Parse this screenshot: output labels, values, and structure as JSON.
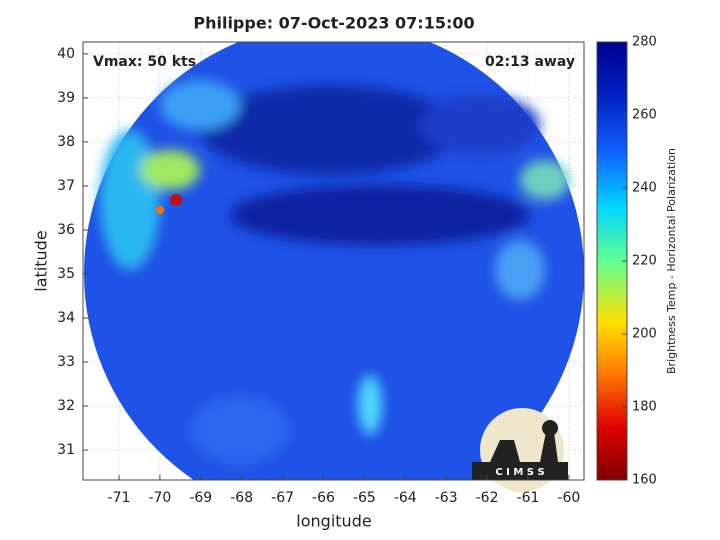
{
  "chart_data": {
    "type": "map",
    "title": "Philippe: 07-Oct-2023 07:15:00",
    "annotations": [
      "Vmax: 50 kts",
      "02:13 away"
    ],
    "xlabel": "longitude",
    "ylabel": "latitude",
    "xlim": [
      -71.88,
      -59.63
    ],
    "ylim": [
      30.32,
      40.27
    ],
    "xticks": [
      -71,
      -70,
      -69,
      -68,
      -67,
      -66,
      -65,
      -64,
      -63,
      -62,
      -61,
      -60
    ],
    "yticks": [
      31,
      32,
      33,
      34,
      35,
      36,
      37,
      38,
      39,
      40
    ],
    "grid": true,
    "colorbar": {
      "label": "Brightness Temp - Horizontal Polarization",
      "lim": [
        160,
        280
      ],
      "ticks": [
        160,
        180,
        200,
        220,
        240,
        260,
        280
      ]
    },
    "logo_text": "C I M S S"
  }
}
